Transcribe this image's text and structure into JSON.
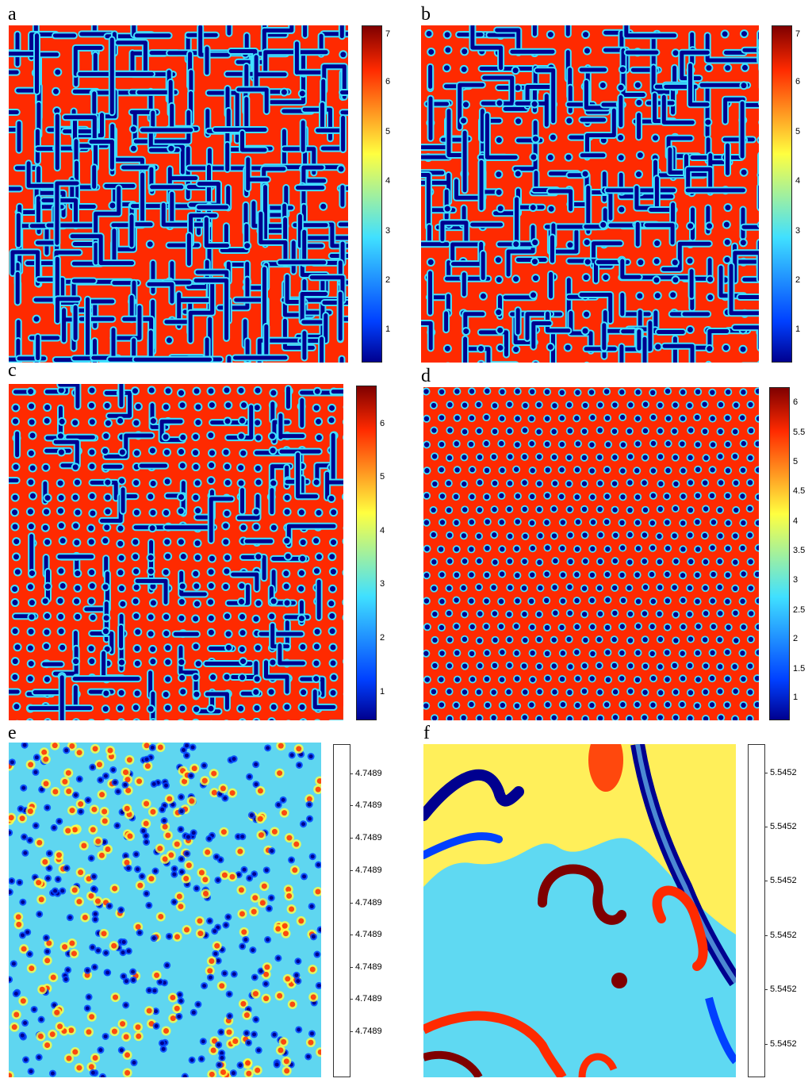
{
  "panels": [
    {
      "label": "a",
      "colorbar_ticks": [
        "1",
        "2",
        "3",
        "4",
        "5",
        "6",
        "7"
      ],
      "pattern": "labyrinthine stripes"
    },
    {
      "label": "b",
      "colorbar_ticks": [
        "1",
        "2",
        "3",
        "4",
        "5",
        "6",
        "7"
      ],
      "pattern": "stripes and spots"
    },
    {
      "label": "c",
      "colorbar_ticks": [
        "1",
        "2",
        "3",
        "4",
        "5",
        "6"
      ],
      "pattern": "mostly spots with some stripes"
    },
    {
      "label": "d",
      "colorbar_ticks": [
        "1",
        "1.5",
        "2",
        "2.5",
        "3",
        "3.5",
        "4",
        "4.5",
        "5",
        "5.5",
        "6"
      ],
      "pattern": "hexagonal spots"
    },
    {
      "label": "e",
      "colorbar_ticks": [
        "4.7489",
        "4.7489",
        "4.7489",
        "4.7489",
        "4.7489",
        "4.7489",
        "4.7489",
        "4.7489",
        "4.7489"
      ],
      "pattern": "mixed spots and stripes, blue-cyan"
    },
    {
      "label": "f",
      "colorbar_ticks": [
        "5.5452",
        "5.5452",
        "5.5452",
        "5.5452",
        "5.5452",
        "5.5452"
      ],
      "pattern": "large chaotic structures"
    }
  ],
  "colors": {
    "dark_blue": "#00008f",
    "blue": "#0040ff",
    "cyan": "#40e0ff",
    "yellow": "#ffff40",
    "orange": "#ff8000",
    "red": "#ff2a00",
    "dark_red": "#7f0000"
  }
}
